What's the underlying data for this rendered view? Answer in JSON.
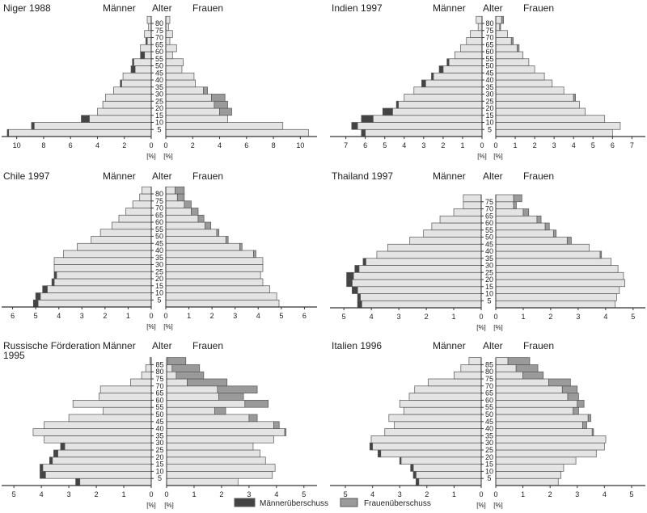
{
  "labels": {
    "men": "Männer",
    "age": "Alter",
    "women": "Frauen",
    "unit": "[%]"
  },
  "legend": {
    "male_surplus": "Männerüberschuss",
    "female_surplus": "Frauenüberschuss"
  },
  "colors": {
    "base": "#e4e4e4",
    "male_surplus": "#444444",
    "female_surplus": "#9a9a9a",
    "stroke": "#555555"
  },
  "chart_data": [
    {
      "type": "bar",
      "subtype": "population-pyramid",
      "title_lines": [
        "Niger 1988"
      ],
      "age_ticks": [
        "5",
        "10",
        "15",
        "20",
        "25",
        "30",
        "35",
        "40",
        "45",
        "50",
        "55",
        "60",
        "65",
        "70",
        "75",
        "80"
      ],
      "x_ticks": [
        0,
        2,
        4,
        6,
        8,
        10
      ],
      "xlim": [
        0,
        11
      ],
      "men": [
        10.7,
        8.9,
        5.2,
        4.0,
        3.6,
        3.4,
        2.8,
        2.3,
        2.1,
        1.5,
        1.4,
        0.8,
        0.8,
        0.4,
        0.5,
        0.2,
        0.3
      ],
      "women": [
        10.6,
        8.7,
        4.6,
        4.9,
        4.6,
        4.4,
        3.1,
        2.2,
        2.1,
        1.2,
        1.3,
        0.5,
        0.8,
        0.3,
        0.5,
        0.2,
        0.3
      ]
    },
    {
      "type": "bar",
      "subtype": "population-pyramid",
      "title_lines": [
        "Indien 1997"
      ],
      "age_ticks": [
        "5",
        "10",
        "15",
        "20",
        "25",
        "30",
        "35",
        "40",
        "45",
        "50",
        "55",
        "60",
        "65",
        "70",
        "75",
        "80"
      ],
      "x_ticks": [
        0,
        1,
        2,
        3,
        4,
        5,
        6,
        7
      ],
      "xlim": [
        0,
        7.4
      ],
      "men": [
        6.2,
        6.7,
        6.2,
        5.1,
        4.4,
        4.0,
        3.5,
        3.1,
        2.6,
        2.2,
        1.8,
        1.4,
        1.1,
        0.8,
        0.6,
        0.2,
        0.3
      ],
      "women": [
        6.0,
        6.4,
        5.6,
        4.6,
        4.3,
        4.1,
        3.5,
        2.9,
        2.5,
        2.0,
        1.7,
        1.4,
        1.2,
        0.9,
        0.6,
        0.25,
        0.4
      ]
    },
    {
      "type": "bar",
      "subtype": "population-pyramid",
      "title_lines": [
        "Chile 1997"
      ],
      "age_ticks": [
        "5",
        "10",
        "15",
        "20",
        "25",
        "30",
        "35",
        "40",
        "45",
        "50",
        "55",
        "60",
        "65",
        "70",
        "75",
        "80"
      ],
      "x_ticks": [
        0,
        1,
        2,
        3,
        4,
        5,
        6
      ],
      "xlim": [
        0,
        6.3
      ],
      "men": [
        5.1,
        5.0,
        4.7,
        4.3,
        4.2,
        4.2,
        4.2,
        3.8,
        3.2,
        2.6,
        2.2,
        1.7,
        1.4,
        1.1,
        0.8,
        0.5,
        0.4
      ],
      "women": [
        4.9,
        4.8,
        4.5,
        4.2,
        4.1,
        4.2,
        4.2,
        3.9,
        3.3,
        2.7,
        2.3,
        1.95,
        1.65,
        1.4,
        1.1,
        0.8,
        0.8
      ]
    },
    {
      "type": "bar",
      "subtype": "population-pyramid",
      "title_lines": [
        "Thailand 1997"
      ],
      "age_ticks": [
        "5",
        "10",
        "15",
        "20",
        "25",
        "30",
        "35",
        "40",
        "45",
        "50",
        "55",
        "60",
        "65",
        "70",
        "75"
      ],
      "x_ticks": [
        0,
        1,
        2,
        3,
        4,
        5
      ],
      "xlim": [
        0,
        5.3
      ],
      "men": [
        4.5,
        4.5,
        4.7,
        4.9,
        4.9,
        4.6,
        4.3,
        3.8,
        3.4,
        2.6,
        2.1,
        1.8,
        1.5,
        1.0,
        0.65,
        0.65
      ],
      "women": [
        4.35,
        4.4,
        4.5,
        4.7,
        4.65,
        4.45,
        4.2,
        3.85,
        3.4,
        2.75,
        2.2,
        1.95,
        1.65,
        1.2,
        0.75,
        0.95
      ]
    },
    {
      "type": "bar",
      "subtype": "population-pyramid",
      "title_lines": [
        "Russische Förderation",
        "1995"
      ],
      "age_ticks": [
        "5",
        "10",
        "15",
        "20",
        "25",
        "30",
        "35",
        "40",
        "45",
        "50",
        "55",
        "60",
        "65",
        "70",
        "75",
        "80",
        "85"
      ],
      "x_ticks": [
        0,
        1,
        2,
        3,
        4,
        5
      ],
      "xlim": [
        0,
        5.3
      ],
      "men": [
        2.75,
        4.05,
        4.05,
        3.7,
        3.55,
        3.3,
        3.9,
        4.3,
        3.9,
        3.0,
        1.75,
        2.85,
        1.9,
        1.85,
        0.75,
        0.35,
        0.2,
        0.05
      ],
      "women": [
        2.6,
        3.85,
        3.95,
        3.6,
        3.4,
        3.15,
        3.9,
        4.35,
        4.1,
        3.3,
        2.15,
        3.7,
        2.8,
        3.3,
        2.2,
        1.35,
        1.2,
        0.7
      ]
    },
    {
      "type": "bar",
      "subtype": "population-pyramid",
      "title_lines": [
        "Italien 1996"
      ],
      "age_ticks": [
        "5",
        "10",
        "15",
        "20",
        "25",
        "30",
        "35",
        "40",
        "45",
        "50",
        "55",
        "60",
        "65",
        "70",
        "75",
        "80",
        "85"
      ],
      "x_ticks": [
        0,
        1,
        2,
        3,
        4,
        5
      ],
      "xlim": [
        0,
        5.3
      ],
      "men": [
        2.4,
        2.5,
        2.6,
        3.0,
        3.8,
        4.1,
        4.05,
        3.55,
        3.2,
        3.4,
        2.85,
        3.0,
        2.65,
        2.45,
        1.95,
        1.0,
        0.75,
        0.45
      ],
      "women": [
        2.3,
        2.4,
        2.5,
        2.95,
        3.7,
        4.0,
        4.05,
        3.6,
        3.35,
        3.5,
        3.05,
        3.25,
        3.05,
        3.0,
        2.75,
        1.75,
        1.55,
        1.25
      ]
    }
  ]
}
